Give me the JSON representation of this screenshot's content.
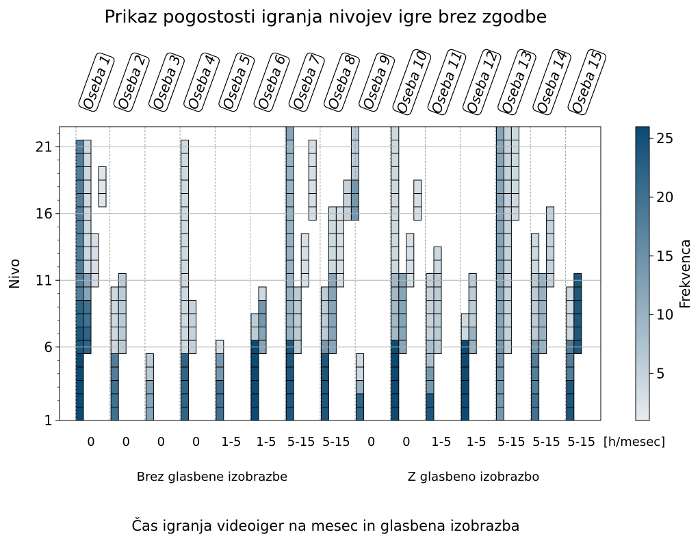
{
  "chart_data": {
    "type": "heatmap",
    "title": "Prikaz pogostosti igranja nivojev igre brez zgodbe",
    "ylabel": "Nivo",
    "xlabel": "Čas igranja videoiger na mesec in glasbena izobrazba",
    "x_unit_label": "[h/mesec]",
    "y_ticks": [
      "1",
      "6",
      "11",
      "16",
      "21"
    ],
    "ylim": [
      1,
      22
    ],
    "colorbar": {
      "label": "Frekvenca",
      "min": 1,
      "max": 26,
      "ticks": [
        "5",
        "10",
        "15",
        "20",
        "25"
      ],
      "color_low": "#e8ecf0",
      "color_high": "#0b4a72"
    },
    "groups": [
      {
        "label": "Brez glasbene izobrazbe"
      },
      {
        "label": "Z glasbeno izobrazbo"
      }
    ],
    "persons": [
      {
        "name": "Oseba 1",
        "hours": "0",
        "group": 0,
        "cols": [
          {
            "levels": [
              [
                1,
                5,
                26
              ],
              [
                6,
                7,
                24
              ],
              [
                8,
                9,
                22
              ],
              [
                10,
                21,
                18
              ]
            ]
          },
          {
            "levels": [
              [
                6,
                7,
                22
              ],
              [
                8,
                9,
                20
              ],
              [
                10,
                11,
                12
              ],
              [
                12,
                21,
                4
              ]
            ]
          },
          {
            "levels": [
              [
                11,
                14,
                3
              ]
            ]
          },
          {
            "levels": [
              [
                17,
                19,
                2
              ]
            ]
          }
        ]
      },
      {
        "name": "Oseba 2",
        "hours": "0",
        "group": 0,
        "cols": [
          {
            "levels": [
              [
                1,
                3,
                20
              ],
              [
                4,
                5,
                18
              ],
              [
                6,
                10,
                4
              ]
            ]
          },
          {
            "levels": [
              [
                6,
                11,
                6
              ]
            ]
          }
        ]
      },
      {
        "name": "Oseba 3",
        "hours": "0",
        "group": 0,
        "cols": [
          {
            "levels": [
              [
                1,
                3,
                12
              ],
              [
                4,
                5,
                6
              ]
            ]
          }
        ]
      },
      {
        "name": "Oseba 4",
        "hours": "0",
        "group": 0,
        "cols": [
          {
            "levels": [
              [
                1,
                5,
                22
              ],
              [
                6,
                21,
                4
              ]
            ]
          },
          {
            "levels": [
              [
                6,
                9,
                5
              ]
            ]
          }
        ]
      },
      {
        "name": "Oseba 5",
        "hours": "1-5",
        "group": 0,
        "cols": [
          {
            "levels": [
              [
                1,
                3,
                20
              ],
              [
                4,
                5,
                14
              ],
              [
                6,
                6,
                3
              ]
            ]
          }
        ]
      },
      {
        "name": "Oseba 6",
        "hours": "1-5",
        "group": 0,
        "cols": [
          {
            "levels": [
              [
                1,
                6,
                26
              ],
              [
                7,
                8,
                6
              ]
            ]
          },
          {
            "levels": [
              [
                6,
                7,
                12
              ],
              [
                8,
                9,
                14
              ],
              [
                10,
                10,
                4
              ]
            ]
          }
        ]
      },
      {
        "name": "Oseba 7",
        "hours": "5-15",
        "group": 0,
        "cols": [
          {
            "levels": [
              [
                1,
                6,
                24
              ],
              [
                7,
                11,
                10
              ],
              [
                12,
                21,
                10
              ],
              [
                22,
                22,
                12
              ]
            ]
          },
          {
            "levels": [
              [
                6,
                10,
                6
              ]
            ]
          },
          {
            "levels": [
              [
                11,
                14,
                3
              ]
            ]
          },
          {
            "levels": [
              [
                16,
                21,
                3
              ]
            ]
          }
        ]
      },
      {
        "name": "Oseba 8",
        "hours": "5-15",
        "group": 0,
        "cols": [
          {
            "levels": [
              [
                1,
                5,
                24
              ],
              [
                6,
                6,
                14
              ],
              [
                7,
                10,
                6
              ]
            ]
          },
          {
            "levels": [
              [
                6,
                11,
                12
              ],
              [
                12,
                16,
                4
              ]
            ]
          },
          {
            "levels": [
              [
                11,
                16,
                3
              ]
            ]
          },
          {
            "levels": [
              [
                16,
                18,
                5
              ]
            ]
          },
          {
            "levels": [
              [
                16,
                18,
                14
              ],
              [
                19,
                22,
                6
              ]
            ]
          }
        ]
      },
      {
        "name": "Oseba 9",
        "hours": "0",
        "group": 1,
        "cols": [
          {
            "levels": [
              [
                1,
                2,
                22
              ],
              [
                3,
                3,
                10
              ],
              [
                4,
                5,
                4
              ]
            ]
          }
        ]
      },
      {
        "name": "Oseba 10",
        "hours": "0",
        "group": 1,
        "cols": [
          {
            "levels": [
              [
                1,
                6,
                26
              ],
              [
                7,
                11,
                9
              ],
              [
                12,
                22,
                4
              ]
            ]
          },
          {
            "levels": [
              [
                6,
                11,
                12
              ]
            ]
          },
          {
            "levels": [
              [
                11,
                14,
                3
              ]
            ]
          },
          {
            "levels": [
              [
                16,
                18,
                3
              ]
            ]
          }
        ]
      },
      {
        "name": "Oseba 11",
        "hours": "1-5",
        "group": 1,
        "cols": [
          {
            "levels": [
              [
                1,
                2,
                24
              ],
              [
                3,
                4,
                14
              ],
              [
                5,
                6,
                8
              ],
              [
                7,
                11,
                5
              ]
            ]
          },
          {
            "levels": [
              [
                6,
                11,
                6
              ],
              [
                12,
                13,
                4
              ]
            ]
          }
        ]
      },
      {
        "name": "Oseba 12",
        "hours": "1-5",
        "group": 1,
        "cols": [
          {
            "levels": [
              [
                1,
                6,
                26
              ],
              [
                7,
                8,
                4
              ]
            ]
          },
          {
            "levels": [
              [
                6,
                7,
                10
              ],
              [
                8,
                11,
                6
              ]
            ]
          }
        ]
      },
      {
        "name": "Oseba 13",
        "hours": "5-15",
        "group": 1,
        "cols": [
          {
            "levels": [
              [
                1,
                6,
                14
              ],
              [
                7,
                22,
                12
              ]
            ]
          },
          {
            "levels": [
              [
                6,
                22,
                5
              ]
            ]
          },
          {
            "levels": [
              [
                16,
                22,
                4
              ]
            ]
          }
        ]
      },
      {
        "name": "Oseba 14",
        "hours": "5-15",
        "group": 1,
        "cols": [
          {
            "levels": [
              [
                1,
                2,
                20
              ],
              [
                3,
                5,
                18
              ],
              [
                6,
                6,
                14
              ],
              [
                7,
                11,
                6
              ],
              [
                12,
                14,
                4
              ]
            ]
          },
          {
            "levels": [
              [
                6,
                11,
                10
              ]
            ]
          },
          {
            "levels": [
              [
                11,
                16,
                5
              ]
            ]
          }
        ]
      },
      {
        "name": "Oseba 15",
        "hours": "5-15",
        "group": 1,
        "cols": [
          {
            "levels": [
              [
                1,
                3,
                24
              ],
              [
                4,
                6,
                18
              ],
              [
                7,
                10,
                4
              ]
            ]
          },
          {
            "levels": [
              [
                6,
                11,
                24
              ]
            ]
          }
        ]
      }
    ]
  }
}
